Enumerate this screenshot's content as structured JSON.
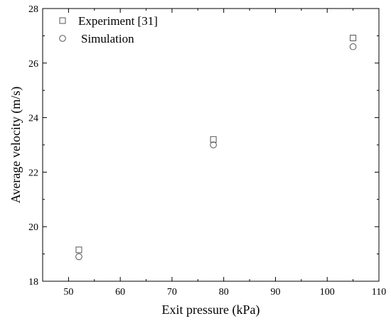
{
  "chart_data": {
    "type": "scatter",
    "title": "",
    "xlabel": "Exit pressure (kPa)",
    "ylabel": "Average velocity (m/s)",
    "xlim": [
      45,
      110
    ],
    "ylim": [
      18,
      28
    ],
    "x_ticks": [
      50,
      60,
      70,
      80,
      90,
      100,
      110
    ],
    "y_ticks": [
      18,
      20,
      22,
      24,
      26,
      28
    ],
    "grid": false,
    "legend_position": "top-left",
    "series": [
      {
        "name": "Experiment [31]",
        "marker": "square",
        "x": [
          52,
          78,
          105
        ],
        "y": [
          19.15,
          23.2,
          26.92
        ]
      },
      {
        "name": "Simulation",
        "marker": "circle",
        "x": [
          52,
          78,
          105
        ],
        "y": [
          18.9,
          23.0,
          26.6
        ]
      }
    ],
    "colors": {
      "marker_stroke": "#555555",
      "axis": "#000000"
    }
  }
}
